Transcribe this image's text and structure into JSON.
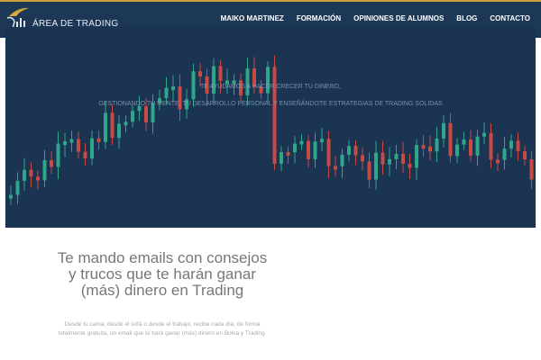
{
  "header": {
    "logo_text": "ÁREA DE TRADING",
    "nav": [
      "MAIKO MARTINEZ",
      "FORMACIÓN",
      "OPINIONES DE ALUMNOS",
      "BLOG",
      "CONTACTO"
    ]
  },
  "hero": {
    "line1": "TE AYUDAMOS A HACER CRECER TU DINERO,",
    "line2": "GESTIONANDO TU MENTE, TU DESARROLLO PERSONAL Y ENSEÑÁNDOTE ESTRATEGIAS DE TRADING SOLIDAS"
  },
  "main": {
    "headline": "Te mando emails con consejos y trucos que te harán ganar (más) dinero en Trading",
    "description": "Desde tu cama, desde el sofá o desde el trabajo, recibe cada día, de forma totalmente gratuita, un email que te hará ganar (más) dinero en Bolsa y Trading."
  },
  "colors": {
    "accent": "#c9a13b",
    "header_bg": "#1d3857",
    "hero_bg": "#1a3452",
    "bull": "#2fa58a",
    "bear": "#c84a45"
  }
}
